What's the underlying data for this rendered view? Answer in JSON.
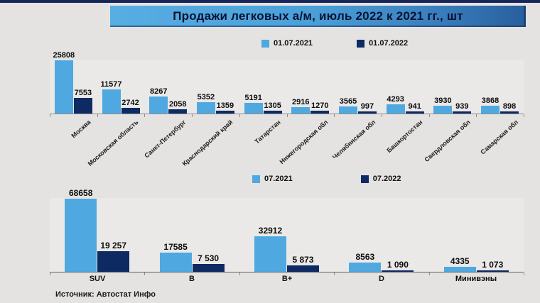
{
  "page": {
    "title": "Продажи легковых а/м, июль 2022 к 2021 гг., шт",
    "source": "Источник: Автостат Инфо"
  },
  "colors": {
    "series_2021": "#4FA9E0",
    "series_2022": "#0E2A63",
    "banner_left": "#58AEE3",
    "banner_right": "#285E9D",
    "background": "#E5E3E1"
  },
  "chart_data": [
    {
      "type": "bar",
      "title": "",
      "legend": [
        {
          "label": "01.07.2021",
          "color": "#4FA9E0"
        },
        {
          "label": "01.07.2022",
          "color": "#0E2A63"
        }
      ],
      "legend_position": "top-center",
      "grid": false,
      "ylim": [
        0,
        26000
      ],
      "categories": [
        "Москва",
        "Московская область",
        "Санкт-Петербург",
        "Краснодарский край",
        "Татарстан",
        "Нижегородская обл",
        "Челябинская обл",
        "Башкортостан",
        "Свердловская обл",
        "Самарская обл"
      ],
      "series": [
        {
          "name": "01.07.2021",
          "color": "#4FA9E0",
          "values": [
            25808,
            11577,
            8267,
            5352,
            5191,
            2916,
            3565,
            4293,
            3930,
            3868
          ],
          "labels": [
            "25808",
            "11577",
            "8267",
            "5352",
            "5191",
            "2916",
            "3565",
            "4293",
            "3930",
            "3868"
          ]
        },
        {
          "name": "01.07.2022",
          "color": "#0E2A63",
          "values": [
            7553,
            2742,
            2058,
            1359,
            1305,
            1270,
            997,
            941,
            939,
            898
          ],
          "labels": [
            "7553",
            "2742",
            "2058",
            "1359",
            "1305",
            "1270",
            "997",
            "941",
            "939",
            "898"
          ]
        }
      ]
    },
    {
      "type": "bar",
      "title": "",
      "legend": [
        {
          "label": "07.2021",
          "color": "#4FA9E0"
        },
        {
          "label": "07.2022",
          "color": "#0E2A63"
        }
      ],
      "legend_position": "top-center",
      "grid": false,
      "ylim": [
        0,
        69000
      ],
      "categories": [
        "SUV",
        "B",
        "B+",
        "D",
        "Минивэны"
      ],
      "series": [
        {
          "name": "07.2021",
          "color": "#4FA9E0",
          "values": [
            68658,
            17585,
            32912,
            8563,
            4335
          ],
          "labels": [
            "68658",
            "17585",
            "32912",
            "8563",
            "4335"
          ]
        },
        {
          "name": "07.2022",
          "color": "#0E2A63",
          "values": [
            19257,
            7530,
            5873,
            1090,
            1073
          ],
          "labels": [
            "19 257",
            "7 530",
            "5 873",
            "1 090",
            "1 073"
          ]
        }
      ]
    }
  ]
}
